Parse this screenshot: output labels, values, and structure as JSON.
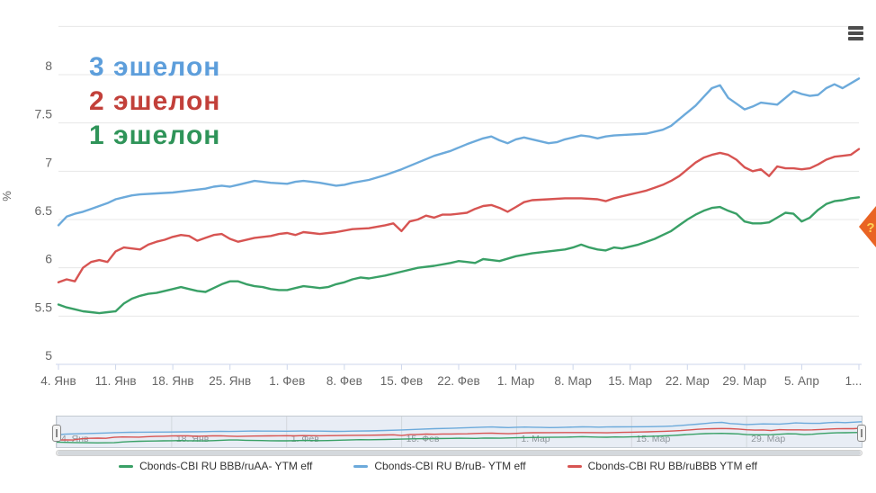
{
  "chart": {
    "y_axis": {
      "title": "%",
      "tick_values": [
        5,
        5.5,
        6,
        6.5,
        7,
        7.5,
        8
      ],
      "tick_labels": [
        "5",
        "5.5",
        "6",
        "6.5",
        "7",
        "7.5",
        "8"
      ],
      "extra_gridlines": [
        8.5
      ]
    },
    "x_axis": {
      "ticks": [
        {
          "day": 0,
          "label": "4. Янв"
        },
        {
          "day": 7,
          "label": "11. Янв"
        },
        {
          "day": 14,
          "label": "18. Янв"
        },
        {
          "day": 21,
          "label": "25. Янв"
        },
        {
          "day": 28,
          "label": "1. Фев"
        },
        {
          "day": 35,
          "label": "8. Фев"
        },
        {
          "day": 42,
          "label": "15. Фев"
        },
        {
          "day": 49,
          "label": "22. Фев"
        },
        {
          "day": 56,
          "label": "1. Мар"
        },
        {
          "day": 63,
          "label": "8. Мар"
        },
        {
          "day": 70,
          "label": "15. Мар"
        },
        {
          "day": 77,
          "label": "22. Мар"
        },
        {
          "day": 84,
          "label": "29. Мар"
        },
        {
          "day": 91,
          "label": "5. Апр"
        },
        {
          "day": 98,
          "label": "1..."
        }
      ]
    }
  },
  "annotations": [
    {
      "text": "3 эшелон",
      "color": "#5d9edb"
    },
    {
      "text": "2 эшелон",
      "color": "#c2403a"
    },
    {
      "text": "1 эшелон",
      "color": "#2f9459"
    }
  ],
  "help_flag": {
    "label": "?",
    "color": "#e96424",
    "text_color": "#ffd257"
  },
  "navigator": {
    "ticks": [
      {
        "day": 0,
        "label": "4. Янв"
      },
      {
        "day": 14,
        "label": "18. Янв"
      },
      {
        "day": 28,
        "label": "1. Фев"
      },
      {
        "day": 42,
        "label": "15. Фев"
      },
      {
        "day": 56,
        "label": "1. Мар"
      },
      {
        "day": 70,
        "label": "15. Мар"
      },
      {
        "day": 84,
        "label": "29. Мар"
      }
    ]
  },
  "legend": {
    "items": [
      {
        "label": "Cbonds-CBI RU BBB/ruAA- YTM eff",
        "color": "#39a066"
      },
      {
        "label": "Cbonds-CBI RU B/ruB- YTM eff",
        "color": "#6caadb"
      },
      {
        "label": "Cbonds-CBI RU BB/ruBBB YTM eff",
        "color": "#d75452"
      }
    ]
  },
  "chart_data": {
    "type": "line",
    "title": "",
    "xlabel": "",
    "ylabel": "%",
    "ylim": [
      5,
      8.55
    ],
    "x_unit": "days since 4 Jan",
    "x_tick_labels": [
      "4. Янв",
      "11. Янв",
      "18. Янв",
      "25. Янв",
      "1. Фев",
      "8. Фев",
      "15. Фев",
      "22. Фев",
      "1. Мар",
      "8. Мар",
      "15. Мар",
      "22. Мар",
      "29. Мар",
      "5. Апр",
      "1..."
    ],
    "grid": true,
    "legend_position": "bottom",
    "series": [
      {
        "name": "Cbonds-CBI RU B/ruB- YTM eff",
        "tier": "3 эшелон",
        "color": "#6caadb",
        "points": [
          [
            0,
            6.44
          ],
          [
            1,
            6.53
          ],
          [
            2,
            6.56
          ],
          [
            3,
            6.58
          ],
          [
            4,
            6.61
          ],
          [
            5,
            6.64
          ],
          [
            6,
            6.67
          ],
          [
            7,
            6.71
          ],
          [
            8,
            6.73
          ],
          [
            9,
            6.75
          ],
          [
            10,
            6.76
          ],
          [
            12,
            6.77
          ],
          [
            14,
            6.78
          ],
          [
            16,
            6.8
          ],
          [
            18,
            6.82
          ],
          [
            19,
            6.84
          ],
          [
            20,
            6.85
          ],
          [
            21,
            6.84
          ],
          [
            22,
            6.86
          ],
          [
            24,
            6.9
          ],
          [
            25,
            6.89
          ],
          [
            26,
            6.88
          ],
          [
            28,
            6.87
          ],
          [
            29,
            6.89
          ],
          [
            30,
            6.9
          ],
          [
            31,
            6.89
          ],
          [
            32,
            6.88
          ],
          [
            34,
            6.85
          ],
          [
            35,
            6.86
          ],
          [
            36,
            6.88
          ],
          [
            38,
            6.91
          ],
          [
            40,
            6.96
          ],
          [
            42,
            7.02
          ],
          [
            44,
            7.09
          ],
          [
            46,
            7.16
          ],
          [
            48,
            7.21
          ],
          [
            50,
            7.28
          ],
          [
            52,
            7.34
          ],
          [
            53,
            7.36
          ],
          [
            54,
            7.32
          ],
          [
            55,
            7.29
          ],
          [
            56,
            7.33
          ],
          [
            57,
            7.35
          ],
          [
            58,
            7.33
          ],
          [
            59,
            7.31
          ],
          [
            60,
            7.29
          ],
          [
            61,
            7.3
          ],
          [
            62,
            7.33
          ],
          [
            63,
            7.35
          ],
          [
            64,
            7.37
          ],
          [
            65,
            7.36
          ],
          [
            66,
            7.34
          ],
          [
            67,
            7.36
          ],
          [
            68,
            7.37
          ],
          [
            70,
            7.38
          ],
          [
            72,
            7.39
          ],
          [
            74,
            7.43
          ],
          [
            75,
            7.47
          ],
          [
            76,
            7.54
          ],
          [
            77,
            7.61
          ],
          [
            78,
            7.68
          ],
          [
            79,
            7.77
          ],
          [
            80,
            7.86
          ],
          [
            81,
            7.89
          ],
          [
            82,
            7.76
          ],
          [
            83,
            7.7
          ],
          [
            84,
            7.64
          ],
          [
            85,
            7.67
          ],
          [
            86,
            7.71
          ],
          [
            87,
            7.7
          ],
          [
            88,
            7.69
          ],
          [
            89,
            7.76
          ],
          [
            90,
            7.83
          ],
          [
            91,
            7.8
          ],
          [
            92,
            7.78
          ],
          [
            93,
            7.79
          ],
          [
            94,
            7.86
          ],
          [
            95,
            7.9
          ],
          [
            96,
            7.86
          ],
          [
            97,
            7.91
          ],
          [
            98,
            7.96
          ]
        ]
      },
      {
        "name": "Cbonds-CBI RU BB/ruBBB YTM eff",
        "tier": "2 эшелон",
        "color": "#d75452",
        "points": [
          [
            0,
            5.85
          ],
          [
            1,
            5.88
          ],
          [
            2,
            5.86
          ],
          [
            3,
            6.0
          ],
          [
            4,
            6.06
          ],
          [
            5,
            6.08
          ],
          [
            6,
            6.06
          ],
          [
            7,
            6.17
          ],
          [
            8,
            6.21
          ],
          [
            9,
            6.2
          ],
          [
            10,
            6.19
          ],
          [
            11,
            6.24
          ],
          [
            12,
            6.27
          ],
          [
            13,
            6.29
          ],
          [
            14,
            6.32
          ],
          [
            15,
            6.34
          ],
          [
            16,
            6.33
          ],
          [
            17,
            6.28
          ],
          [
            18,
            6.31
          ],
          [
            19,
            6.34
          ],
          [
            20,
            6.35
          ],
          [
            21,
            6.3
          ],
          [
            22,
            6.27
          ],
          [
            24,
            6.31
          ],
          [
            26,
            6.33
          ],
          [
            27,
            6.35
          ],
          [
            28,
            6.36
          ],
          [
            29,
            6.34
          ],
          [
            30,
            6.37
          ],
          [
            31,
            6.36
          ],
          [
            32,
            6.35
          ],
          [
            34,
            6.37
          ],
          [
            36,
            6.4
          ],
          [
            38,
            6.41
          ],
          [
            40,
            6.44
          ],
          [
            41,
            6.46
          ],
          [
            42,
            6.38
          ],
          [
            43,
            6.48
          ],
          [
            44,
            6.5
          ],
          [
            45,
            6.54
          ],
          [
            46,
            6.52
          ],
          [
            47,
            6.55
          ],
          [
            48,
            6.55
          ],
          [
            50,
            6.57
          ],
          [
            51,
            6.61
          ],
          [
            52,
            6.64
          ],
          [
            53,
            6.65
          ],
          [
            54,
            6.62
          ],
          [
            55,
            6.58
          ],
          [
            56,
            6.63
          ],
          [
            57,
            6.68
          ],
          [
            58,
            6.7
          ],
          [
            60,
            6.71
          ],
          [
            62,
            6.72
          ],
          [
            64,
            6.72
          ],
          [
            66,
            6.71
          ],
          [
            67,
            6.69
          ],
          [
            68,
            6.72
          ],
          [
            69,
            6.74
          ],
          [
            70,
            6.76
          ],
          [
            71,
            6.78
          ],
          [
            72,
            6.8
          ],
          [
            73,
            6.83
          ],
          [
            74,
            6.86
          ],
          [
            75,
            6.9
          ],
          [
            76,
            6.95
          ],
          [
            77,
            7.02
          ],
          [
            78,
            7.09
          ],
          [
            79,
            7.14
          ],
          [
            80,
            7.17
          ],
          [
            81,
            7.19
          ],
          [
            82,
            7.17
          ],
          [
            83,
            7.12
          ],
          [
            84,
            7.04
          ],
          [
            85,
            7.0
          ],
          [
            86,
            7.02
          ],
          [
            87,
            6.95
          ],
          [
            88,
            7.05
          ],
          [
            89,
            7.03
          ],
          [
            90,
            7.03
          ],
          [
            91,
            7.02
          ],
          [
            92,
            7.03
          ],
          [
            93,
            7.07
          ],
          [
            94,
            7.12
          ],
          [
            95,
            7.15
          ],
          [
            96,
            7.16
          ],
          [
            97,
            7.17
          ],
          [
            98,
            7.23
          ]
        ]
      },
      {
        "name": "Cbonds-CBI RU BBB/ruAA- YTM eff",
        "tier": "1 эшелон",
        "color": "#39a066",
        "points": [
          [
            0,
            5.62
          ],
          [
            1,
            5.59
          ],
          [
            2,
            5.57
          ],
          [
            3,
            5.55
          ],
          [
            4,
            5.54
          ],
          [
            5,
            5.53
          ],
          [
            6,
            5.54
          ],
          [
            7,
            5.55
          ],
          [
            8,
            5.63
          ],
          [
            9,
            5.68
          ],
          [
            10,
            5.71
          ],
          [
            11,
            5.73
          ],
          [
            12,
            5.74
          ],
          [
            13,
            5.76
          ],
          [
            14,
            5.78
          ],
          [
            15,
            5.8
          ],
          [
            16,
            5.78
          ],
          [
            17,
            5.76
          ],
          [
            18,
            5.75
          ],
          [
            19,
            5.79
          ],
          [
            20,
            5.83
          ],
          [
            21,
            5.86
          ],
          [
            22,
            5.86
          ],
          [
            23,
            5.83
          ],
          [
            24,
            5.81
          ],
          [
            25,
            5.8
          ],
          [
            26,
            5.78
          ],
          [
            27,
            5.77
          ],
          [
            28,
            5.77
          ],
          [
            29,
            5.79
          ],
          [
            30,
            5.81
          ],
          [
            31,
            5.8
          ],
          [
            32,
            5.79
          ],
          [
            33,
            5.8
          ],
          [
            34,
            5.83
          ],
          [
            35,
            5.85
          ],
          [
            36,
            5.88
          ],
          [
            37,
            5.9
          ],
          [
            38,
            5.89
          ],
          [
            40,
            5.92
          ],
          [
            42,
            5.96
          ],
          [
            44,
            6.0
          ],
          [
            46,
            6.02
          ],
          [
            48,
            6.05
          ],
          [
            49,
            6.07
          ],
          [
            50,
            6.06
          ],
          [
            51,
            6.05
          ],
          [
            52,
            6.09
          ],
          [
            53,
            6.08
          ],
          [
            54,
            6.07
          ],
          [
            56,
            6.12
          ],
          [
            58,
            6.15
          ],
          [
            60,
            6.17
          ],
          [
            62,
            6.19
          ],
          [
            63,
            6.21
          ],
          [
            64,
            6.24
          ],
          [
            65,
            6.21
          ],
          [
            66,
            6.19
          ],
          [
            67,
            6.18
          ],
          [
            68,
            6.21
          ],
          [
            69,
            6.2
          ],
          [
            70,
            6.22
          ],
          [
            71,
            6.24
          ],
          [
            72,
            6.27
          ],
          [
            73,
            6.3
          ],
          [
            74,
            6.34
          ],
          [
            75,
            6.38
          ],
          [
            76,
            6.44
          ],
          [
            77,
            6.5
          ],
          [
            78,
            6.55
          ],
          [
            79,
            6.59
          ],
          [
            80,
            6.62
          ],
          [
            81,
            6.63
          ],
          [
            82,
            6.59
          ],
          [
            83,
            6.56
          ],
          [
            84,
            6.48
          ],
          [
            85,
            6.46
          ],
          [
            86,
            6.46
          ],
          [
            87,
            6.47
          ],
          [
            88,
            6.52
          ],
          [
            89,
            6.57
          ],
          [
            90,
            6.56
          ],
          [
            91,
            6.48
          ],
          [
            92,
            6.52
          ],
          [
            93,
            6.6
          ],
          [
            94,
            6.66
          ],
          [
            95,
            6.69
          ],
          [
            96,
            6.7
          ],
          [
            97,
            6.72
          ],
          [
            98,
            6.73
          ]
        ]
      }
    ]
  }
}
